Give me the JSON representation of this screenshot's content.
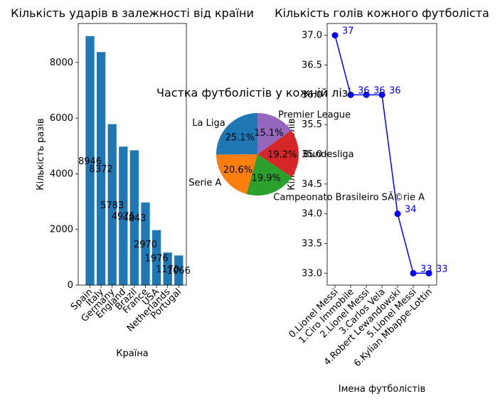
{
  "chart_data": [
    {
      "type": "bar",
      "title": "Кількість ударів в залежності від країни",
      "xlabel": "Країна",
      "ylabel": "Кількість разів",
      "categories": [
        "Spain",
        "Italy",
        "Germany",
        "England",
        "Brazil",
        "France",
        "USA",
        "Netherlands",
        "Portugal"
      ],
      "values": [
        8946,
        8372,
        5783,
        4975,
        4843,
        2970,
        1976,
        1170,
        1066
      ],
      "yticks": [
        0,
        2000,
        4000,
        6000,
        8000
      ],
      "ylim": [
        0,
        9400
      ],
      "color": "#1f77b4",
      "data_labels": [
        "8946",
        "8372",
        "5783",
        "4975",
        "4843",
        "2970",
        "1976",
        "1170",
        "1066"
      ]
    },
    {
      "type": "pie",
      "title": "Частка футболістів у кожній лізі",
      "labels": [
        "La Liga",
        "Serie A",
        "Campeonato Brasileiro SÃ©rie A",
        "Bundesliga",
        "Premier League"
      ],
      "values": [
        25.1,
        20.6,
        19.9,
        19.2,
        15.1
      ],
      "autopct": [
        "25.1%",
        "20.6%",
        "19.9%",
        "19.2%",
        "15.1%"
      ],
      "colors": [
        "#1f77b4",
        "#ff7f0e",
        "#2ca02c",
        "#d62728",
        "#9467bd"
      ]
    },
    {
      "type": "line",
      "title": "Кількість голів кожного футболіста",
      "xlabel": "Імена футболістів",
      "ylabel": "Кількість голів",
      "categories": [
        "0.Lionel Messi",
        "1.Ciro Immobile",
        "2.Lionel Messi",
        "3.Carlos Vela",
        "4.Robert Lewandowski",
        "5.Lionel Messi",
        "6.Kylian Mbappe-Lottin"
      ],
      "values": [
        37,
        36,
        36,
        36,
        34,
        33,
        33
      ],
      "data_labels": [
        "37",
        "36",
        "36",
        "36",
        "34",
        "33",
        "33"
      ],
      "yticks": [
        "33.0",
        "33.5",
        "34.0",
        "34.5",
        "35.0",
        "35.5",
        "36.0",
        "36.5",
        "37.0"
      ],
      "ylim": [
        32.8,
        37.2
      ],
      "color": "#0000ff",
      "marker": "circle"
    }
  ]
}
